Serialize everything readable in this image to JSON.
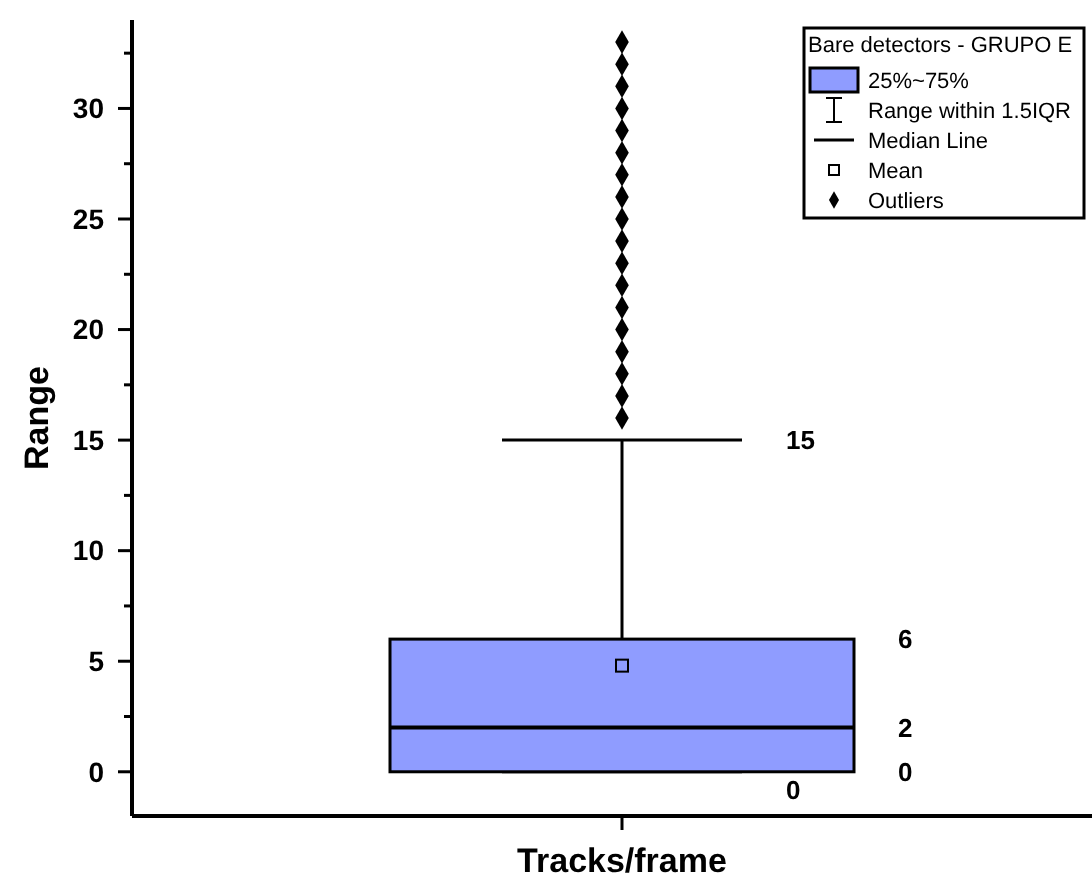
{
  "chart_data": {
    "type": "box",
    "xlabel": "Tracks/frame",
    "ylabel": "Range",
    "categories": [
      null
    ],
    "series": [
      {
        "color": "#8f9cff",
        "boxes": [
          {
            "low": 0,
            "q1": 0,
            "median": 2,
            "q3": 6,
            "high": 15,
            "mean": 4.8,
            "outliers": [
              16,
              17,
              18,
              19,
              20,
              21,
              22,
              23,
              24,
              25,
              26,
              27,
              28,
              29,
              30,
              31,
              32,
              33
            ]
          }
        ]
      }
    ],
    "ylim": [
      -2,
      34
    ],
    "yticks": [
      0,
      {
        "value": 2.5,
        "label": null
      },
      5,
      {
        "value": 7.5,
        "label": null
      },
      10,
      {
        "value": 12.5,
        "label": null
      },
      15,
      {
        "value": 17.5,
        "label": null
      },
      20,
      {
        "value": 22.5,
        "label": null
      },
      25,
      {
        "value": 27.5,
        "label": null
      },
      30,
      {
        "value": 32.5,
        "label": null
      }
    ],
    "legend_title": "Bare detectors - GRUPO E",
    "annotations": [
      "15",
      "6",
      "2",
      "0",
      "0",
      "25%~75%",
      "Range within 1.5IQR",
      "Median Line",
      "Mean",
      "Outliers"
    ],
    "marker": "diamond"
  }
}
